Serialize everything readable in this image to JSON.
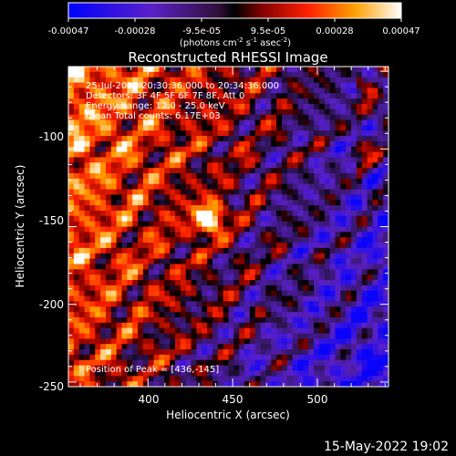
{
  "colorbar": {
    "ticks": [
      "-0.00047",
      "-0.00028",
      "-9.5e-05",
      "9.5e-05",
      "0.00028",
      "0.00047"
    ],
    "units_prefix": "(photons cm",
    "units_exp1": "-2",
    "units_mid": " s",
    "units_exp2": "-1",
    "units_mid2": " asec",
    "units_exp3": "-2",
    "units_suffix": ")"
  },
  "chart_data": {
    "type": "heatmap",
    "title": "Reconstructed RHESSI Image",
    "xlabel": "Heliocentric X (arcsec)",
    "ylabel": "Heliocentric Y (arcsec)",
    "xlim": [
      353,
      542
    ],
    "ylim": [
      -253,
      -47
    ],
    "x_ticks": [
      400,
      450,
      500
    ],
    "y_ticks": [
      -100,
      -150,
      -200,
      -250
    ],
    "value_range": [
      -0.00047,
      0.00047
    ],
    "colormap": "blue-purple-black-red-yellow-white",
    "peak": [
      436,
      -145
    ]
  },
  "info": {
    "time": "25-Jul-2013 20:30:36.000 to 20:34:36.000",
    "detectors": "Detectors: 3F 4F 5F 6F 7F 8F, Att 0",
    "energy": "Energy Range: 12.0 - 25.0 keV",
    "clean": "Clean     Total counts: 6.17E+03",
    "peak_label": "Position of Peak = [436,-145]"
  },
  "footer": {
    "date": "15-May-2022 19:02"
  }
}
